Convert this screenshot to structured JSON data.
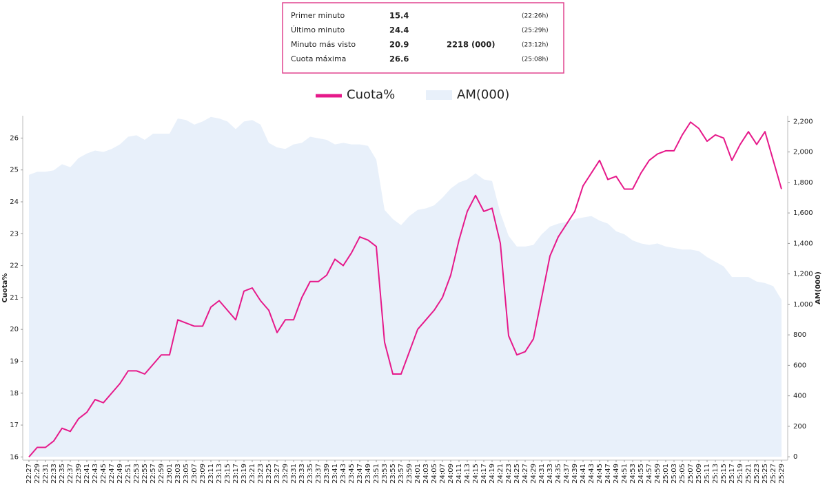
{
  "info_box": {
    "rows": [
      {
        "label": "Primer minuto",
        "value": 15.4,
        "time": "(22:26h)"
      },
      {
        "label": "Último minuto",
        "value": 24.4,
        "time": "(25:29h)"
      },
      {
        "label": "Minuto más visto",
        "value": 20.9,
        "extra": "2218 (000)",
        "time": "(23:12h)"
      },
      {
        "label": "Cuota máxima",
        "value": 26.6,
        "time": "(25:08h)"
      }
    ]
  },
  "chart_data": {
    "type": "line",
    "y_label": "Cuota%",
    "y2_label": "AM(000)",
    "categories": [
      "22:27",
      "22:29",
      "22:31",
      "22:33",
      "22:35",
      "22:37",
      "22:39",
      "22:41",
      "22:43",
      "22:45",
      "22:47",
      "22:49",
      "22:51",
      "22:53",
      "22:55",
      "22:57",
      "22:59",
      "23:01",
      "23:03",
      "23:05",
      "23:07",
      "23:09",
      "23:11",
      "23:13",
      "23:15",
      "23:17",
      "23:19",
      "23:21",
      "23:23",
      "23:25",
      "23:27",
      "23:29",
      "23:31",
      "23:33",
      "23:35",
      "23:37",
      "23:39",
      "23:41",
      "23:43",
      "23:45",
      "23:47",
      "23:49",
      "23:51",
      "23:53",
      "23:55",
      "23:57",
      "23:59",
      "24:01",
      "24:03",
      "24:05",
      "24:07",
      "24:09",
      "24:11",
      "24:13",
      "24:15",
      "24:17",
      "24:19",
      "24:21",
      "24:23",
      "24:25",
      "24:27",
      "24:29",
      "24:31",
      "24:33",
      "24:35",
      "24:37",
      "24:39",
      "24:41",
      "24:43",
      "24:45",
      "24:47",
      "24:49",
      "24:51",
      "24:53",
      "24:55",
      "24:57",
      "24:59",
      "25:01",
      "25:03",
      "25:05",
      "25:07",
      "25:09",
      "25:11",
      "25:13",
      "25:15",
      "25:17",
      "25:19",
      "25:21",
      "25:23",
      "25:25",
      "25:27",
      "25:29"
    ],
    "series": [
      {
        "name": "AM(000)",
        "color": "#e8f0fa",
        "axis": "y2",
        "fill": true,
        "values": [
          1850,
          1870,
          1870,
          1880,
          1920,
          1900,
          1960,
          1990,
          2010,
          2000,
          2020,
          2050,
          2100,
          2110,
          2080,
          2120,
          2120,
          2120,
          2220,
          2210,
          2180,
          2200,
          2230,
          2220,
          2200,
          2150,
          2200,
          2210,
          2180,
          2060,
          2030,
          2020,
          2050,
          2060,
          2100,
          2090,
          2080,
          2050,
          2060,
          2050,
          2050,
          2040,
          1950,
          1620,
          1560,
          1520,
          1580,
          1620,
          1630,
          1650,
          1700,
          1760,
          1800,
          1820,
          1860,
          1820,
          1810,
          1600,
          1450,
          1380,
          1380,
          1390,
          1460,
          1510,
          1530,
          1540,
          1560,
          1570,
          1580,
          1550,
          1530,
          1480,
          1460,
          1420,
          1400,
          1390,
          1400,
          1380,
          1370,
          1360,
          1360,
          1350,
          1310,
          1280,
          1250,
          1180,
          1180,
          1180,
          1150,
          1140,
          1120,
          1030
        ]
      },
      {
        "name": "Cuota%",
        "color": "#e6198a",
        "axis": "y",
        "values": [
          16.0,
          16.3,
          16.3,
          16.5,
          16.9,
          16.8,
          17.2,
          17.4,
          17.8,
          17.7,
          18.0,
          18.3,
          18.7,
          18.7,
          18.6,
          18.9,
          19.2,
          19.2,
          20.3,
          20.2,
          20.1,
          20.1,
          20.7,
          20.9,
          20.6,
          20.3,
          21.2,
          21.3,
          20.9,
          20.6,
          19.9,
          20.3,
          20.3,
          21.0,
          21.5,
          21.5,
          21.7,
          22.2,
          22.0,
          22.4,
          22.9,
          22.8,
          22.6,
          19.6,
          18.6,
          18.6,
          19.3,
          20.0,
          20.3,
          20.6,
          21.0,
          21.7,
          22.8,
          23.7,
          24.2,
          23.7,
          23.8,
          22.7,
          19.8,
          19.2,
          19.3,
          19.7,
          21.0,
          22.3,
          22.9,
          23.3,
          23.7,
          24.5,
          24.9,
          25.3,
          24.7,
          24.8,
          24.4,
          24.4,
          24.9,
          25.3,
          25.5,
          25.6,
          25.6,
          26.1,
          26.5,
          26.3,
          25.9,
          26.1,
          26.0,
          25.3,
          25.8,
          26.2,
          25.8,
          26.2,
          25.3,
          24.4
        ]
      }
    ],
    "ylim": [
      15.9,
      26.7
    ],
    "yticks": [
      16,
      17,
      18,
      19,
      20,
      21,
      22,
      23,
      24,
      25,
      26
    ],
    "y2lim": [
      -22,
      2238
    ],
    "y2ticks": [
      0,
      200,
      400,
      600,
      800,
      {
        "value": 1000,
        "label": "1,000"
      },
      {
        "value": 1200,
        "label": "1,200"
      },
      {
        "value": 1400,
        "label": "1,400"
      },
      {
        "value": 1600,
        "label": "1,600"
      },
      {
        "value": 1800,
        "label": "1,800"
      },
      {
        "value": 2000,
        "label": "2,000"
      },
      {
        "value": 2200,
        "label": "2,200"
      }
    ],
    "legend": "top"
  }
}
